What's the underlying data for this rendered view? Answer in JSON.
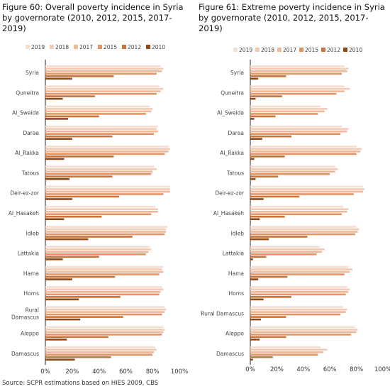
{
  "source": "Source: SCPR estimations based on HIES 2009, CBS",
  "colors": {
    "2019": "#f7ddd0",
    "2018": "#f3cbb4",
    "2017": "#efb898",
    "2015": "#e39467",
    "2012": "#c8743a",
    "2010": "#8b4a1c"
  },
  "chart_data": [
    {
      "type": "bar",
      "orientation": "horizontal",
      "title": "Figure 60: Overall poverty incidence in Syria by governorate (2010, 2012, 2015, 2017-2019)",
      "legend": [
        "2019",
        "2018",
        "2017",
        "2015",
        "2012",
        "2010"
      ],
      "legend_position": "top",
      "xlim": [
        0,
        100
      ],
      "xticks": [
        "0%",
        "20%",
        "40%",
        "60%",
        "80%",
        "100%"
      ],
      "categories": [
        "Syria",
        "Quneitra",
        "Al_Sweida",
        "Daraa",
        "Al_Rakka",
        "Tatous",
        "Deir-ez-zor",
        "Al_Hasakeh",
        "Idleb",
        "Lattakia",
        "Hama",
        "Homs",
        "Rural Damascus",
        "Aleppo",
        "Damascus"
      ],
      "category_lines": [
        [
          "Syria"
        ],
        [
          "Quneitra"
        ],
        [
          "Al_Sweida"
        ],
        [
          "Daraa"
        ],
        [
          "Al_Rakka"
        ],
        [
          "Tatous"
        ],
        [
          "Deir-ez-zor"
        ],
        [
          "Al_Hasakeh"
        ],
        [
          "Idleb"
        ],
        [
          "Lattakia"
        ],
        [
          "Hama"
        ],
        [
          "Homs"
        ],
        [
          "Rural",
          "Damascus"
        ],
        [
          "Aleppo"
        ],
        [
          "Damascus"
        ]
      ],
      "series": [
        {
          "name": "2019",
          "values": [
            86,
            85,
            78,
            84,
            92,
            81,
            93,
            82,
            91,
            78,
            88,
            87,
            89,
            88,
            82
          ]
        },
        {
          "name": "2018",
          "values": [
            88,
            88,
            80,
            83,
            93,
            83,
            93,
            84,
            90,
            79,
            87,
            88,
            90,
            89,
            83
          ]
        },
        {
          "name": "2017",
          "values": [
            87,
            86,
            79,
            84,
            92,
            80,
            93,
            84,
            90,
            77,
            88,
            86,
            89,
            88,
            81
          ]
        },
        {
          "name": "2015",
          "values": [
            83,
            83,
            75,
            81,
            89,
            79,
            88,
            79,
            89,
            75,
            85,
            85,
            87,
            87,
            80
          ]
        },
        {
          "name": "2012",
          "values": [
            51,
            37,
            40,
            50,
            51,
            50,
            55,
            42,
            65,
            40,
            52,
            56,
            58,
            47,
            49
          ]
        },
        {
          "name": "2010",
          "values": [
            20,
            13,
            17,
            20,
            14,
            18,
            20,
            14,
            32,
            13,
            20,
            25,
            26,
            16,
            22
          ]
        }
      ]
    },
    {
      "type": "bar",
      "orientation": "horizontal",
      "title": "Figure 61: Extreme poverty incidence in Syria by governorate (2010, 2012, 2015, 2017-2019)",
      "legend": [
        "2019",
        "2018",
        "2017",
        "2015",
        "2012",
        "2010"
      ],
      "legend_position": "top",
      "xlim": [
        0,
        100
      ],
      "xticks": [
        "0%",
        "20%",
        "40%",
        "60%",
        "80%",
        "100%"
      ],
      "categories": [
        "Syria",
        "Quneitra",
        "Al_Sweida",
        "Daraa",
        "Al_Rakka",
        "Tatous",
        "Deir-ez-zor",
        "Al_Hasakeh",
        "Idleb",
        "Lattakia",
        "Hama",
        "Homs",
        "Rural Damascus",
        "Aleppo",
        "Damascus"
      ],
      "category_lines": [
        [
          "Syria"
        ],
        [
          "Quneitra"
        ],
        [
          "Al_Sweida"
        ],
        [
          "Daraa"
        ],
        [
          "Al_Rakka"
        ],
        [
          "Tatous"
        ],
        [
          "Deir-ez-zor"
        ],
        [
          "Al_Hasakeh"
        ],
        [
          "Idleb"
        ],
        [
          "Lattakia"
        ],
        [
          "Hama"
        ],
        [
          "Homs"
        ],
        [
          "Rural Damascus"
        ],
        [
          "Aleppo"
        ],
        [
          "Damascus"
        ]
      ],
      "series": [
        {
          "name": "2019",
          "values": [
            71,
            71,
            53,
            69,
            80,
            64,
            85,
            70,
            80,
            52,
            74,
            73,
            70,
            79,
            53
          ]
        },
        {
          "name": "2018",
          "values": [
            74,
            75,
            58,
            74,
            84,
            66,
            86,
            74,
            82,
            56,
            77,
            75,
            73,
            81,
            58
          ]
        },
        {
          "name": "2017",
          "values": [
            73,
            71,
            56,
            73,
            83,
            64,
            85,
            73,
            81,
            54,
            75,
            74,
            72,
            80,
            55
          ]
        },
        {
          "name": "2015",
          "values": [
            69,
            65,
            51,
            68,
            80,
            60,
            78,
            69,
            79,
            50,
            71,
            72,
            68,
            76,
            51
          ]
        },
        {
          "name": "2012",
          "values": [
            27,
            24,
            19,
            31,
            26,
            21,
            37,
            26,
            43,
            12,
            28,
            31,
            27,
            27,
            17
          ]
        },
        {
          "name": "2010",
          "values": [
            6,
            4,
            3,
            9,
            3,
            4,
            10,
            7,
            14,
            2,
            6,
            10,
            8,
            7,
            2
          ]
        }
      ]
    }
  ]
}
